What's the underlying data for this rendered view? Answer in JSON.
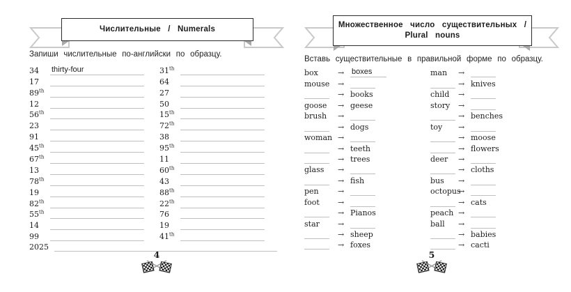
{
  "left_page": {
    "banner_title": "Числительные / Numerals",
    "instruction": "Запиши числительные по-английски по образцу.",
    "columns": {
      "col1": [
        {
          "num": "34",
          "answer": "thirty-four"
        },
        {
          "num": "17"
        },
        {
          "num": "89",
          "ord": "th"
        },
        {
          "num": "12"
        },
        {
          "num": "56",
          "ord": "th"
        },
        {
          "num": "23"
        },
        {
          "num": "91"
        },
        {
          "num": "45",
          "ord": "th"
        },
        {
          "num": "67",
          "ord": "th"
        },
        {
          "num": "13"
        },
        {
          "num": "78",
          "ord": "th"
        },
        {
          "num": "19"
        },
        {
          "num": "82",
          "ord": "th"
        },
        {
          "num": "55",
          "ord": "th"
        },
        {
          "num": "14"
        },
        {
          "num": "99"
        }
      ],
      "col2": [
        {
          "num": "31",
          "ord": "th"
        },
        {
          "num": "64"
        },
        {
          "num": "27"
        },
        {
          "num": "50"
        },
        {
          "num": "15",
          "ord": "th"
        },
        {
          "num": "72",
          "ord": "th"
        },
        {
          "num": "38"
        },
        {
          "num": "95",
          "ord": "th"
        },
        {
          "num": "11"
        },
        {
          "num": "60",
          "ord": "th"
        },
        {
          "num": "43"
        },
        {
          "num": "88",
          "ord": "th"
        },
        {
          "num": "22",
          "ord": "th"
        },
        {
          "num": "76"
        },
        {
          "num": "19"
        },
        {
          "num": "41",
          "ord": "th"
        }
      ]
    },
    "full_width_row": {
      "num": "2025"
    },
    "page_number": "4"
  },
  "right_page": {
    "banner_title_line1": "Множественное число существительных /",
    "banner_title_line2": "Plural nouns",
    "instruction": "Вставь существительные в правильной форме по образцу.",
    "arrow": "→",
    "columns": {
      "col1": [
        {
          "singular": "box",
          "plural": "boxes",
          "plural_style": "written"
        },
        {
          "singular": "mouse"
        },
        {
          "plural": "books"
        },
        {
          "singular": "goose",
          "plural": "geese",
          "plural_style": "printed"
        },
        {
          "singular": "brush"
        },
        {
          "plural": "dogs"
        },
        {
          "singular": "woman"
        },
        {
          "plural": "teeth"
        },
        {
          "plural": "trees"
        },
        {
          "singular": "glass"
        },
        {
          "plural": "fish"
        },
        {
          "singular": "pen"
        },
        {
          "singular": "foot"
        },
        {
          "plural": "Pianos"
        },
        {
          "singular": "star"
        },
        {
          "plural": "sheep"
        },
        {
          "plural": "foxes"
        }
      ],
      "col2": [
        {
          "singular": "man"
        },
        {
          "plural": "knives"
        },
        {
          "singular": "child"
        },
        {
          "singular": "story"
        },
        {
          "plural": "benches"
        },
        {
          "singular": "toy"
        },
        {
          "plural": "moose"
        },
        {
          "plural": "flowers"
        },
        {
          "singular": "deer"
        },
        {
          "plural": "cloths"
        },
        {
          "singular": "bus"
        },
        {
          "singular": "octopus"
        },
        {
          "plural": "cats"
        },
        {
          "singular": "peach"
        },
        {
          "singular": "ball"
        },
        {
          "plural": "babies"
        },
        {
          "plural": "cacti"
        }
      ]
    },
    "page_number": "5"
  }
}
